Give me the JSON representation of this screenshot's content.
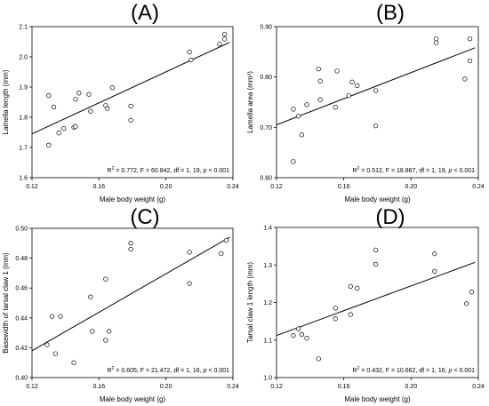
{
  "chart_data": [
    {
      "id": "A",
      "type": "scatter",
      "panel_label": "(A)",
      "xlabel": "Male body weight (g)",
      "ylabel": "Lamella length  (mm)",
      "xlim": [
        0.12,
        0.24
      ],
      "ylim": [
        1.6,
        2.1
      ],
      "xticks": [
        "0.12",
        "0.16",
        "0.20",
        "0.24"
      ],
      "yticks": [
        "1.6",
        "1.7",
        "1.8",
        "1.9",
        "2.0",
        "2.1"
      ],
      "stats": [
        "R",
        "2",
        " = 0.772, F = 60.842, df = 1, 19, ",
        "p",
        " < 0.001"
      ],
      "points": [
        [
          0.13,
          1.872
        ],
        [
          0.13,
          1.708
        ],
        [
          0.133,
          1.834
        ],
        [
          0.136,
          1.748
        ],
        [
          0.139,
          1.763
        ],
        [
          0.145,
          1.767
        ],
        [
          0.146,
          1.77
        ],
        [
          0.146,
          1.86
        ],
        [
          0.148,
          1.88
        ],
        [
          0.154,
          1.876
        ],
        [
          0.155,
          1.82
        ],
        [
          0.164,
          1.839
        ],
        [
          0.165,
          1.829
        ],
        [
          0.168,
          1.898
        ],
        [
          0.179,
          1.837
        ],
        [
          0.179,
          1.79
        ],
        [
          0.214,
          2.016
        ],
        [
          0.215,
          1.99
        ],
        [
          0.232,
          2.043
        ],
        [
          0.235,
          2.059
        ],
        [
          0.235,
          2.075
        ]
      ],
      "fit": [
        [
          0.12,
          1.745
        ],
        [
          0.238,
          2.048
        ]
      ]
    },
    {
      "id": "B",
      "type": "scatter",
      "panel_label": "(B)",
      "xlabel": "Male body weight (g)",
      "ylabel": "Lamella area (mm²)",
      "xlim": [
        0.12,
        0.24
      ],
      "ylim": [
        0.6,
        0.9
      ],
      "xticks": [
        "0.12",
        "0.16",
        "0.20",
        "0.24"
      ],
      "yticks": [
        "0.60",
        "0.70",
        "0.80",
        "0.90"
      ],
      "stats": [
        "R",
        "2",
        " = 0.512, F = 18.867, df = 1, 19, ",
        "p",
        " < 0.001"
      ],
      "points": [
        [
          0.13,
          0.632
        ],
        [
          0.13,
          0.736
        ],
        [
          0.133,
          0.722
        ],
        [
          0.135,
          0.685
        ],
        [
          0.138,
          0.745
        ],
        [
          0.145,
          0.816
        ],
        [
          0.146,
          0.792
        ],
        [
          0.146,
          0.755
        ],
        [
          0.155,
          0.74
        ],
        [
          0.156,
          0.812
        ],
        [
          0.163,
          0.763
        ],
        [
          0.165,
          0.79
        ],
        [
          0.168,
          0.783
        ],
        [
          0.179,
          0.773
        ],
        [
          0.179,
          0.703
        ],
        [
          0.215,
          0.876
        ],
        [
          0.215,
          0.868
        ],
        [
          0.232,
          0.796
        ],
        [
          0.235,
          0.832
        ],
        [
          0.235,
          0.876
        ]
      ],
      "fit": [
        [
          0.12,
          0.705
        ],
        [
          0.238,
          0.858
        ]
      ]
    },
    {
      "id": "C",
      "type": "scatter",
      "panel_label": "(C)",
      "xlabel": "Male body weight (g)",
      "ylabel": "Basewidth of tarsal claw 1 (mm)",
      "xlim": [
        0.12,
        0.24
      ],
      "ylim": [
        0.4,
        0.5
      ],
      "xticks": [
        "0.12",
        "0.16",
        "0.20",
        "0.24"
      ],
      "yticks": [
        "0.40",
        "0.42",
        "0.44",
        "0.46",
        "0.48",
        "0.50"
      ],
      "stats": [
        "R",
        "2",
        " = 0.605, F = 21.472, df = 1, 16, ",
        "p",
        " < 0.001"
      ],
      "points": [
        [
          0.129,
          0.422
        ],
        [
          0.132,
          0.441
        ],
        [
          0.134,
          0.416
        ],
        [
          0.137,
          0.441
        ],
        [
          0.145,
          0.41
        ],
        [
          0.155,
          0.454
        ],
        [
          0.156,
          0.431
        ],
        [
          0.164,
          0.425
        ],
        [
          0.164,
          0.466
        ],
        [
          0.166,
          0.431
        ],
        [
          0.179,
          0.49
        ],
        [
          0.179,
          0.486
        ],
        [
          0.214,
          0.484
        ],
        [
          0.214,
          0.463
        ],
        [
          0.233,
          0.483
        ],
        [
          0.236,
          0.492
        ]
      ],
      "fit": [
        [
          0.12,
          0.418
        ],
        [
          0.238,
          0.494
        ]
      ]
    },
    {
      "id": "D",
      "type": "scatter",
      "panel_label": "(D)",
      "xlabel": "Male body weight (g)",
      "ylabel": "Tarsal claw 1 length (mm)",
      "xlim": [
        0.12,
        0.24
      ],
      "ylim": [
        1.0,
        1.4
      ],
      "xticks": [
        "0.12",
        "0.16",
        "0.20",
        "0.24"
      ],
      "yticks": [
        "1.0",
        "1.1",
        "1.2",
        "1.3",
        "1.4"
      ],
      "stats": [
        "R",
        "2",
        " = 0.432, F = 10.662, df = 1, 16, ",
        "p",
        " < 0.001"
      ],
      "points": [
        [
          0.13,
          1.112
        ],
        [
          0.133,
          1.13
        ],
        [
          0.135,
          1.115
        ],
        [
          0.138,
          1.105
        ],
        [
          0.145,
          1.05
        ],
        [
          0.155,
          1.185
        ],
        [
          0.155,
          1.157
        ],
        [
          0.164,
          1.243
        ],
        [
          0.164,
          1.168
        ],
        [
          0.168,
          1.238
        ],
        [
          0.179,
          1.34
        ],
        [
          0.179,
          1.302
        ],
        [
          0.214,
          1.33
        ],
        [
          0.214,
          1.283
        ],
        [
          0.233,
          1.197
        ],
        [
          0.236,
          1.228
        ]
      ],
      "fit": [
        [
          0.12,
          1.112
        ],
        [
          0.238,
          1.307
        ]
      ]
    }
  ]
}
